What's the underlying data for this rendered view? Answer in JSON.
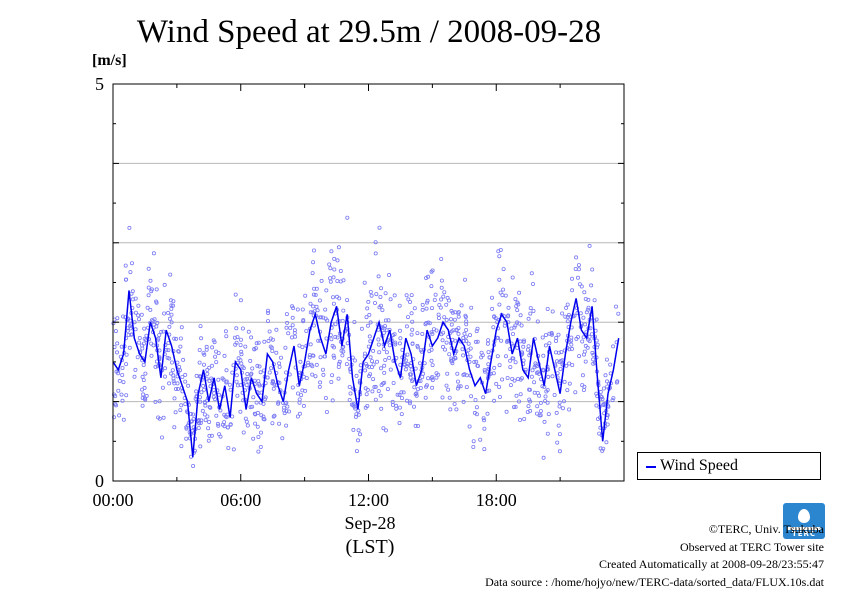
{
  "page": {
    "title": "Wind Speed at 29.5m / 2008-09-28",
    "unit_label": "[m/s]",
    "x_title_line1": "Sep-28",
    "x_title_line2": "(LST)",
    "legend_label": "Wind Speed",
    "credits": [
      "©TERC, Univ. Tsukuba",
      "Observed at TERC Tower site",
      "Created Automatically at 2008-09-28/23:55:47",
      "Data source : /home/hojyo/new/TERC-data/sorted_data/FLUX.10s.dat"
    ],
    "logo_text": "TERC"
  },
  "colors": {
    "series": "#0000ee",
    "scatter": "#7b7bf5",
    "grid": "#b8b8b8"
  },
  "chart_data": {
    "type": "line",
    "title": "Wind Speed at 29.5m / 2008-09-28",
    "ylabel": "[m/s]",
    "xlabel": "Sep-28 (LST)",
    "ylim": [
      0,
      5
    ],
    "xlim": [
      0,
      24
    ],
    "y_ticks": [
      0,
      5
    ],
    "y_gridlines": [
      1,
      2,
      3,
      4
    ],
    "x_ticks": [
      0,
      6,
      12,
      18
    ],
    "x_tick_labels": [
      "00:00",
      "06:00",
      "12:00",
      "18:00"
    ],
    "legend": "right",
    "series": [
      {
        "name": "Wind Speed",
        "x": [
          0.0,
          0.25,
          0.5,
          0.75,
          1.0,
          1.25,
          1.5,
          1.75,
          2.0,
          2.25,
          2.5,
          2.75,
          3.0,
          3.25,
          3.5,
          3.75,
          4.0,
          4.25,
          4.5,
          4.75,
          5.0,
          5.25,
          5.5,
          5.75,
          6.0,
          6.25,
          6.5,
          6.75,
          7.0,
          7.25,
          7.5,
          7.75,
          8.0,
          8.25,
          8.5,
          8.75,
          9.0,
          9.25,
          9.5,
          9.75,
          10.0,
          10.25,
          10.5,
          10.75,
          11.0,
          11.25,
          11.5,
          11.75,
          12.0,
          12.25,
          12.5,
          12.75,
          13.0,
          13.25,
          13.5,
          13.75,
          14.0,
          14.25,
          14.5,
          14.75,
          15.0,
          15.25,
          15.5,
          15.75,
          16.0,
          16.25,
          16.5,
          16.75,
          17.0,
          17.25,
          17.5,
          17.75,
          18.0,
          18.25,
          18.5,
          18.75,
          19.0,
          19.25,
          19.5,
          19.75,
          20.0,
          20.25,
          20.5,
          20.75,
          21.0,
          21.25,
          21.5,
          21.75,
          22.0,
          22.25,
          22.5,
          22.75,
          23.0,
          23.25,
          23.5,
          23.75
        ],
        "y": [
          1.5,
          1.4,
          1.6,
          2.4,
          1.8,
          1.6,
          1.5,
          2.0,
          1.8,
          1.3,
          1.9,
          1.7,
          1.4,
          1.2,
          1.0,
          0.3,
          1.1,
          1.4,
          1.0,
          1.3,
          0.9,
          1.2,
          0.8,
          1.5,
          1.4,
          0.9,
          1.3,
          1.1,
          1.0,
          1.6,
          1.5,
          1.2,
          1.0,
          1.4,
          1.7,
          1.2,
          1.5,
          1.9,
          2.1,
          1.8,
          1.6,
          2.0,
          2.2,
          1.7,
          2.1,
          1.3,
          0.9,
          1.5,
          1.6,
          1.8,
          2.0,
          1.7,
          1.9,
          1.5,
          1.3,
          1.8,
          1.6,
          1.2,
          1.4,
          1.9,
          1.7,
          1.8,
          2.0,
          1.9,
          1.6,
          1.8,
          1.7,
          1.4,
          1.2,
          1.3,
          1.1,
          1.5,
          1.9,
          2.1,
          2.0,
          1.6,
          1.8,
          1.4,
          1.3,
          1.8,
          1.5,
          1.2,
          1.7,
          1.4,
          1.1,
          1.6,
          2.0,
          2.3,
          1.9,
          1.8,
          2.2,
          1.3,
          0.5,
          1.1,
          1.4,
          1.8
        ]
      }
    ]
  }
}
